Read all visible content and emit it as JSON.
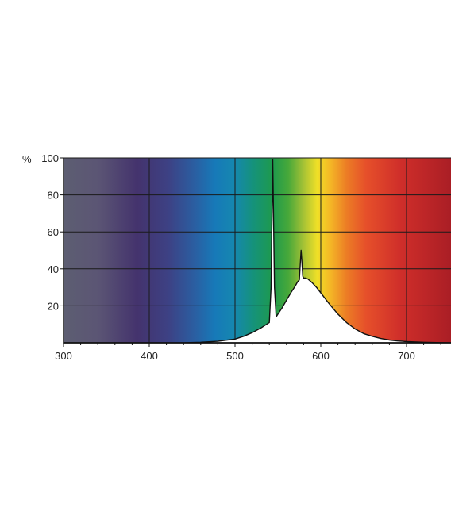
{
  "chart_data": {
    "type": "area",
    "title": "",
    "xlabel": "",
    "ylabel": "%",
    "xlim": [
      300,
      760
    ],
    "ylim": [
      0,
      100
    ],
    "x_ticks": [
      300,
      400,
      500,
      600,
      700
    ],
    "y_ticks": [
      20,
      40,
      60,
      80,
      100
    ],
    "grid": true,
    "background": "visible-spectrum color gradient (violet to red)",
    "series": [
      {
        "x": [
          300,
          440,
          460,
          480,
          500,
          510,
          520,
          530,
          540,
          542,
          544,
          546,
          548,
          550,
          555,
          560,
          565,
          570,
          573,
          575,
          576,
          577,
          578,
          579,
          580,
          582,
          585,
          590,
          595,
          600,
          610,
          620,
          630,
          640,
          650,
          660,
          670,
          680,
          690,
          700,
          720,
          740,
          760
        ],
        "y": [
          0,
          0,
          0.3,
          0.8,
          2,
          3.5,
          5.5,
          8,
          11,
          30,
          99,
          30,
          14,
          15.5,
          19,
          23,
          27,
          30.5,
          33,
          34,
          42,
          50,
          44,
          36,
          35,
          35,
          34.5,
          32.5,
          30,
          27,
          21,
          15.5,
          11,
          7.5,
          5,
          3.5,
          2.3,
          1.5,
          1,
          0.7,
          0.3,
          0.1,
          0
        ]
      }
    ],
    "colors": {
      "curve_fill": "#ffffff",
      "curve_stroke": "#111111",
      "grid": "#1a1a1a"
    }
  }
}
